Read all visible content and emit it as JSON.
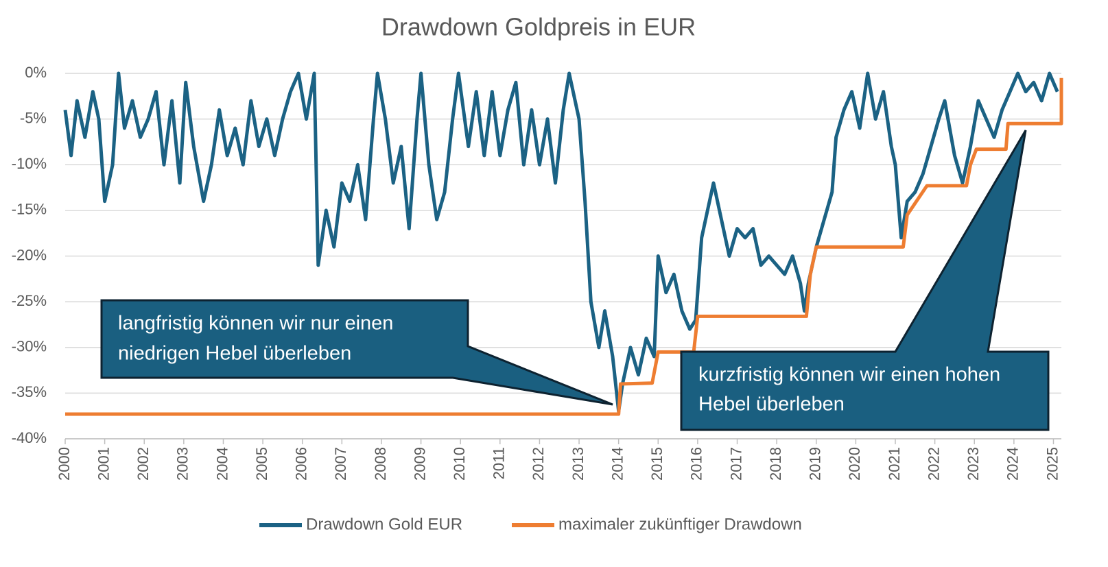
{
  "chart_data": {
    "type": "line",
    "title": "Drawdown Goldpreis in EUR",
    "xlim": [
      2000,
      2025.2
    ],
    "xticks": [
      2000,
      2001,
      2002,
      2003,
      2004,
      2005,
      2006,
      2007,
      2008,
      2009,
      2010,
      2011,
      2012,
      2013,
      2014,
      2015,
      2016,
      2017,
      2018,
      2019,
      2020,
      2021,
      2022,
      2023,
      2024,
      2025
    ],
    "ylim": [
      -40,
      0
    ],
    "yticks": [
      {
        "value": 0,
        "label": "0%"
      },
      {
        "value": -5,
        "label": "-5%"
      },
      {
        "value": -10,
        "label": "-10%"
      },
      {
        "value": -15,
        "label": "-15%"
      },
      {
        "value": -20,
        "label": "-20%"
      },
      {
        "value": -25,
        "label": "-25%"
      },
      {
        "value": -30,
        "label": "-30%"
      },
      {
        "value": -35,
        "label": "-35%"
      },
      {
        "value": -40,
        "label": "-40%"
      }
    ],
    "grid": true,
    "legend": "bottom",
    "series": [
      {
        "name": "Drawdown Gold EUR",
        "color": "#1b6284",
        "x": [
          2000.0,
          2000.15,
          2000.3,
          2000.5,
          2000.7,
          2000.85,
          2001.0,
          2001.2,
          2001.35,
          2001.5,
          2001.7,
          2001.9,
          2002.1,
          2002.3,
          2002.5,
          2002.7,
          2002.9,
          2003.05,
          2003.25,
          2003.5,
          2003.7,
          2003.9,
          2004.1,
          2004.3,
          2004.5,
          2004.7,
          2004.9,
          2005.1,
          2005.3,
          2005.5,
          2005.7,
          2005.9,
          2006.1,
          2006.3,
          2006.4,
          2006.6,
          2006.8,
          2007.0,
          2007.2,
          2007.4,
          2007.6,
          2007.8,
          2007.9,
          2008.1,
          2008.3,
          2008.5,
          2008.7,
          2008.9,
          2009.0,
          2009.2,
          2009.4,
          2009.6,
          2009.8,
          2009.95,
          2010.2,
          2010.4,
          2010.6,
          2010.8,
          2011.0,
          2011.2,
          2011.4,
          2011.6,
          2011.8,
          2012.0,
          2012.2,
          2012.4,
          2012.6,
          2012.75,
          2013.0,
          2013.15,
          2013.3,
          2013.5,
          2013.65,
          2013.85,
          2014.0,
          2014.1,
          2014.3,
          2014.5,
          2014.7,
          2014.9,
          2015.0,
          2015.2,
          2015.4,
          2015.6,
          2015.8,
          2015.95,
          2016.1,
          2016.25,
          2016.4,
          2016.6,
          2016.8,
          2017.0,
          2017.2,
          2017.4,
          2017.6,
          2017.8,
          2018.0,
          2018.2,
          2018.4,
          2018.6,
          2018.7,
          2018.8,
          2019.0,
          2019.2,
          2019.4,
          2019.5,
          2019.7,
          2019.9,
          2020.1,
          2020.3,
          2020.5,
          2020.7,
          2020.9,
          2021.0,
          2021.15,
          2021.3,
          2021.5,
          2021.7,
          2021.9,
          2022.1,
          2022.25,
          2022.5,
          2022.7,
          2022.9,
          2023.1,
          2023.3,
          2023.5,
          2023.7,
          2023.9,
          2024.1,
          2024.3,
          2024.5,
          2024.7,
          2024.9,
          2025.1
        ],
        "values": [
          -4,
          -9,
          -3,
          -7,
          -2,
          -5,
          -14,
          -10,
          0,
          -6,
          -3,
          -7,
          -5,
          -2,
          -10,
          -3,
          -12,
          -1,
          -8,
          -14,
          -10,
          -4,
          -9,
          -6,
          -10,
          -3,
          -8,
          -5,
          -9,
          -5,
          -2,
          0,
          -5,
          0,
          -21,
          -15,
          -19,
          -12,
          -14,
          -10,
          -16,
          -5,
          0,
          -5,
          -12,
          -8,
          -17,
          -5,
          0,
          -10,
          -16,
          -13,
          -5,
          0,
          -8,
          -2,
          -9,
          -2,
          -9,
          -4,
          -1,
          -10,
          -4,
          -10,
          -5,
          -12,
          -4,
          0,
          -5,
          -14,
          -25,
          -30,
          -26,
          -31,
          -37,
          -34,
          -30,
          -33,
          -29,
          -31,
          -20,
          -24,
          -22,
          -26,
          -28,
          -27,
          -18,
          -15,
          -12,
          -16,
          -20,
          -17,
          -18,
          -17,
          -21,
          -20,
          -21,
          -22,
          -20,
          -23,
          -26,
          -23,
          -19,
          -16,
          -13,
          -7,
          -4,
          -2,
          -6,
          0,
          -5,
          -2,
          -8,
          -10,
          -18,
          -14,
          -13,
          -11,
          -8,
          -5,
          -3,
          -9,
          -12,
          -8,
          -3,
          -5,
          -7,
          -4,
          -2,
          0,
          -2,
          -1,
          -3,
          0,
          -2
        ]
      },
      {
        "name": "maximaler zukünftiger Drawdown",
        "color": "#ee7d31",
        "x": [
          2000,
          2014.0,
          2014.05,
          2014.85,
          2015.0,
          2015.9,
          2016.0,
          2018.75,
          2018.85,
          2019.0,
          2021.2,
          2021.3,
          2021.8,
          2022.8,
          2022.9,
          2023.05,
          2023.8,
          2023.85,
          2025.2,
          2025.2
        ],
        "values": [
          -37.3,
          -37.3,
          -34,
          -33.9,
          -30.5,
          -30.5,
          -26.6,
          -26.6,
          -22,
          -19,
          -19,
          -15.5,
          -12.3,
          -12.3,
          -10,
          -8.3,
          -8.3,
          -5.5,
          -5.5,
          -0.5
        ]
      }
    ],
    "annotations": [
      {
        "lines": [
          "langfristig können wir nur einen",
          "niedrigen Hebel überleben"
        ]
      },
      {
        "lines": [
          "kurzfristig können wir einen hohen",
          "Hebel überleben"
        ]
      }
    ]
  }
}
